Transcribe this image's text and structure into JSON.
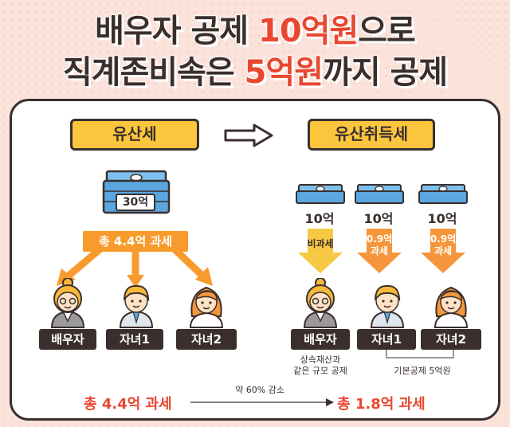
{
  "title": {
    "line1_a": "배우자 공제 ",
    "line1_b": "10억원",
    "line1_c": "으로",
    "line2_a": "직계존비속은 ",
    "line2_b": "5억원",
    "line2_c": "까지 공제"
  },
  "left": {
    "pill": "유산세",
    "money_amount": "30억",
    "tax_banner": "총 4.4억 과세",
    "persons": [
      {
        "role": "배우자"
      },
      {
        "role": "자녀1"
      },
      {
        "role": "자녀2"
      }
    ]
  },
  "right": {
    "pill": "유산취득세",
    "money": [
      {
        "amount": "10억",
        "arrow_text": "비과세"
      },
      {
        "amount": "10억",
        "arrow_text_1": "0.9억",
        "arrow_text_2": "과세"
      },
      {
        "amount": "10억",
        "arrow_text_1": "0.9억",
        "arrow_text_2": "과세"
      }
    ],
    "persons": [
      {
        "role": "배우자"
      },
      {
        "role": "자녀1"
      },
      {
        "role": "자녀2"
      }
    ],
    "note_spouse_1": "상속재산과",
    "note_spouse_2": "같은 규모 공제",
    "note_children": "기본공제 5억원"
  },
  "bottom": {
    "left_total": "총 4.4억 과세",
    "reduction": "약 60% 감소",
    "right_total": "총 1.8억 과세"
  },
  "colors": {
    "accent_red": "#e9472f",
    "pill_yellow": "#fbc63d",
    "arrow_orange": "#f89b2c",
    "money_blue": "#5aa7e0",
    "outline_dark": "#3a2f2c"
  }
}
